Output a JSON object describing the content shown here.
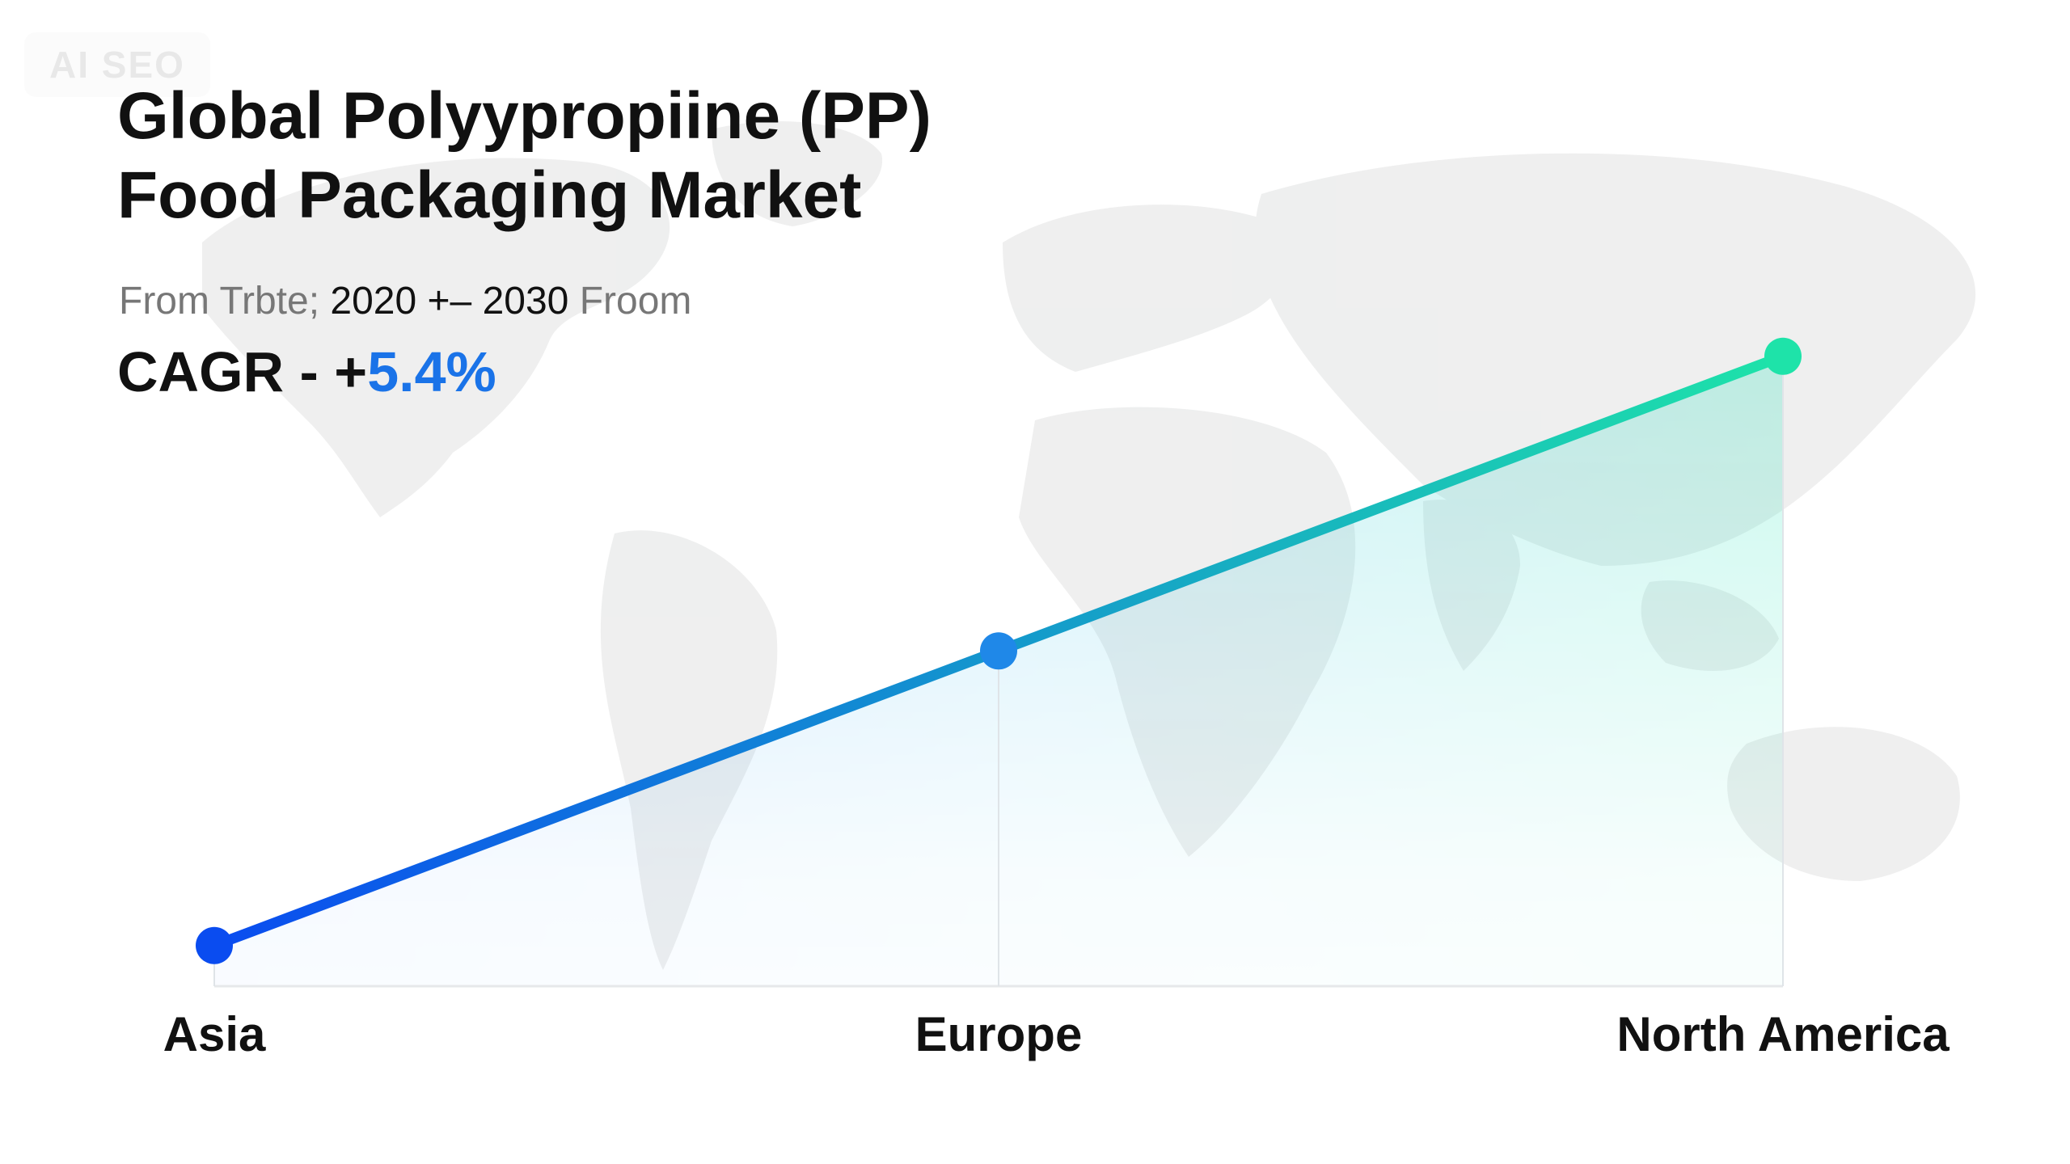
{
  "watermark": "AI SEO",
  "header": {
    "title_line1": "Global Polyypropiine (PP)",
    "title_line2": "Food Packaging Market",
    "subtitle_prefix": "From Trbte;",
    "subtitle_range": "2020 +– 2030",
    "subtitle_suffix": "Froom",
    "cagr_prefix": "CAGR - +",
    "cagr_value": "5.4%"
  },
  "colors": {
    "accent": "#1a73e8",
    "line_start": "#0a4cf0",
    "line_end": "#1ee3a9"
  },
  "chart_data": {
    "type": "line",
    "categories": [
      "Asia",
      "Europe",
      "North America"
    ],
    "series": [
      {
        "values": [
          1.0,
          3.9,
          6.8
        ]
      }
    ],
    "title": "Global Polyypropiine (PP) Food Packaging Market",
    "xlabel": "",
    "ylabel": "",
    "ylim": [
      0.6,
      7.8
    ],
    "grid": false,
    "legend": "none"
  }
}
